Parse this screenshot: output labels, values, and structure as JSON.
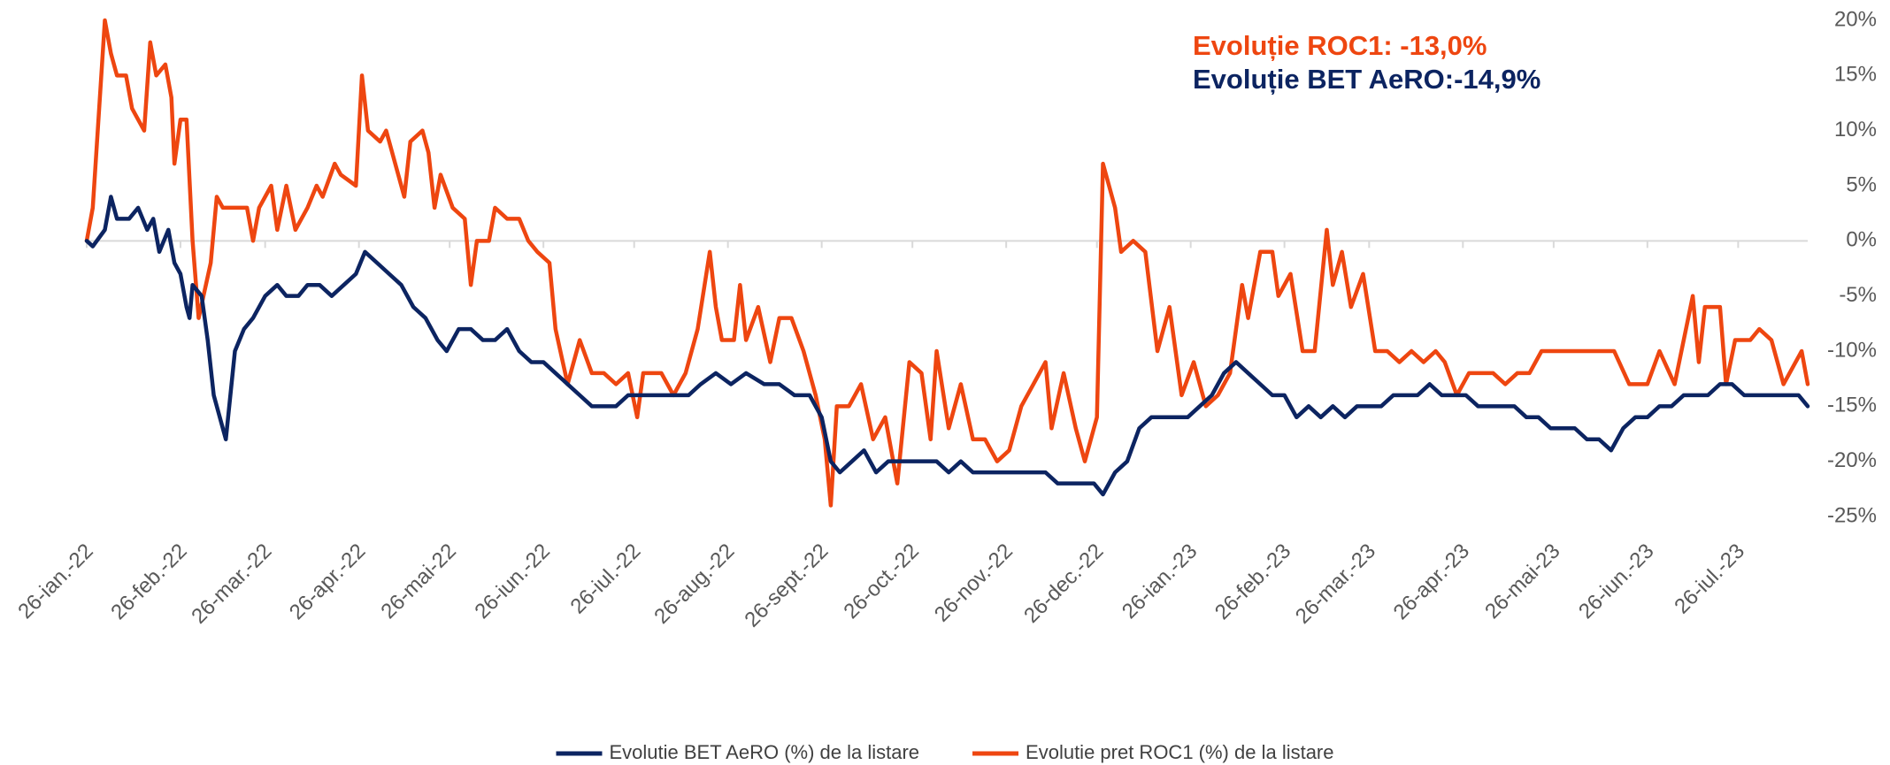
{
  "chart_data": {
    "type": "line",
    "annotations": [
      {
        "text": "Evoluție ROC1: -13,0%",
        "color": "#ee4610"
      },
      {
        "text": "Evoluție BET AeRO:-14,9%",
        "color": "#0c2461"
      }
    ],
    "xlim": [
      "2022-01-26",
      "2023-08-18"
    ],
    "xticks": [
      {
        "value": "2022-01-26",
        "label": "26-ian.-22"
      },
      {
        "value": "2022-02-26",
        "label": "26-feb.-22"
      },
      {
        "value": "2022-03-26",
        "label": "26-mar.-22"
      },
      {
        "value": "2022-04-26",
        "label": "26-apr.-22"
      },
      {
        "value": "2022-05-26",
        "label": "26-mai-22"
      },
      {
        "value": "2022-06-26",
        "label": "26-iun.-22"
      },
      {
        "value": "2022-07-26",
        "label": "26-iul.-22"
      },
      {
        "value": "2022-08-26",
        "label": "26-aug.-22"
      },
      {
        "value": "2022-09-26",
        "label": "26-sept.-22"
      },
      {
        "value": "2022-10-26",
        "label": "26-oct.-22"
      },
      {
        "value": "2022-11-26",
        "label": "26-nov.-22"
      },
      {
        "value": "2022-12-26",
        "label": "26-dec.-22"
      },
      {
        "value": "2023-01-26",
        "label": "26-ian.-23"
      },
      {
        "value": "2023-02-26",
        "label": "26-feb.-23"
      },
      {
        "value": "2023-03-26",
        "label": "26-mar.-23"
      },
      {
        "value": "2023-04-26",
        "label": "26-apr.-23"
      },
      {
        "value": "2023-05-26",
        "label": "26-mai-23"
      },
      {
        "value": "2023-06-26",
        "label": "26-iun.-23"
      },
      {
        "value": "2023-07-26",
        "label": "26-iul.-23"
      }
    ],
    "ylim": [
      -25,
      20
    ],
    "yticks": [
      {
        "value": 20,
        "label": "20%"
      },
      {
        "value": 15,
        "label": "15%"
      },
      {
        "value": 10,
        "label": "10%"
      },
      {
        "value": 5,
        "label": "5%"
      },
      {
        "value": 0,
        "label": "0%"
      },
      {
        "value": -5,
        "label": "-5%"
      },
      {
        "value": -10,
        "label": "-10%"
      },
      {
        "value": -15,
        "label": "-15%"
      },
      {
        "value": -20,
        "label": "-20%"
      },
      {
        "value": -25,
        "label": "-25%"
      }
    ],
    "grid": false,
    "legend": "bottom",
    "series": [
      {
        "name": "Evolutie BET AeRO (%) de la listare",
        "color": "#0c2461",
        "x": [
          "2022-01-26",
          "2022-01-28",
          "2022-02-01",
          "2022-02-03",
          "2022-02-05",
          "2022-02-09",
          "2022-02-12",
          "2022-02-15",
          "2022-02-17",
          "2022-02-19",
          "2022-02-22",
          "2022-02-24",
          "2022-02-26",
          "2022-02-28",
          "2022-03-01",
          "2022-03-02",
          "2022-03-05",
          "2022-03-07",
          "2022-03-09",
          "2022-03-13",
          "2022-03-16",
          "2022-03-19",
          "2022-03-22",
          "2022-03-26",
          "2022-03-30",
          "2022-04-02",
          "2022-04-06",
          "2022-04-09",
          "2022-04-13",
          "2022-04-17",
          "2022-04-21",
          "2022-04-25",
          "2022-04-28",
          "2022-05-02",
          "2022-05-06",
          "2022-05-10",
          "2022-05-14",
          "2022-05-18",
          "2022-05-22",
          "2022-05-25",
          "2022-05-29",
          "2022-06-02",
          "2022-06-06",
          "2022-06-10",
          "2022-06-14",
          "2022-06-18",
          "2022-06-22",
          "2022-06-26",
          "2022-06-30",
          "2022-07-04",
          "2022-07-08",
          "2022-07-12",
          "2022-07-16",
          "2022-07-20",
          "2022-07-24",
          "2022-07-28",
          "2022-08-03",
          "2022-08-09",
          "2022-08-13",
          "2022-08-17",
          "2022-08-22",
          "2022-08-27",
          "2022-09-01",
          "2022-09-07",
          "2022-09-12",
          "2022-09-17",
          "2022-09-22",
          "2022-09-26",
          "2022-09-29",
          "2022-10-02",
          "2022-10-06",
          "2022-10-10",
          "2022-10-14",
          "2022-10-18",
          "2022-10-22",
          "2022-10-26",
          "2022-10-30",
          "2022-11-03",
          "2022-11-07",
          "2022-11-11",
          "2022-11-15",
          "2022-11-19",
          "2022-11-23",
          "2022-11-27",
          "2022-12-01",
          "2022-12-05",
          "2022-12-09",
          "2022-12-13",
          "2022-12-17",
          "2022-12-21",
          "2022-12-25",
          "2022-12-28",
          "2023-01-01",
          "2023-01-05",
          "2023-01-09",
          "2023-01-13",
          "2023-01-17",
          "2023-01-21",
          "2023-01-25",
          "2023-01-29",
          "2023-02-02",
          "2023-02-06",
          "2023-02-10",
          "2023-02-14",
          "2023-02-18",
          "2023-02-22",
          "2023-02-26",
          "2023-03-02",
          "2023-03-06",
          "2023-03-10",
          "2023-03-14",
          "2023-03-18",
          "2023-03-22",
          "2023-03-26",
          "2023-03-30",
          "2023-04-03",
          "2023-04-07",
          "2023-04-11",
          "2023-04-15",
          "2023-04-19",
          "2023-04-23",
          "2023-04-27",
          "2023-05-01",
          "2023-05-05",
          "2023-05-09",
          "2023-05-13",
          "2023-05-17",
          "2023-05-21",
          "2023-05-25",
          "2023-05-29",
          "2023-06-02",
          "2023-06-06",
          "2023-06-10",
          "2023-06-14",
          "2023-06-18",
          "2023-06-22",
          "2023-06-26",
          "2023-06-30",
          "2023-07-04",
          "2023-07-08",
          "2023-07-12",
          "2023-07-16",
          "2023-07-20",
          "2023-07-24",
          "2023-07-28",
          "2023-08-01",
          "2023-08-06",
          "2023-08-11",
          "2023-08-15",
          "2023-08-18"
        ],
        "values": [
          0,
          -0.5,
          1,
          4,
          2,
          2,
          3,
          1,
          2,
          -1,
          1,
          -2,
          -3,
          -6,
          -7,
          -4,
          -5,
          -9,
          -14,
          -18,
          -10,
          -8,
          -7,
          -5,
          -4,
          -5,
          -5,
          -4,
          -4,
          -5,
          -4,
          -3,
          -1,
          -2,
          -3,
          -4,
          -6,
          -7,
          -9,
          -10,
          -8,
          -8,
          -9,
          -9,
          -8,
          -10,
          -11,
          -11,
          -12,
          -13,
          -14,
          -15,
          -15,
          -15,
          -14,
          -14,
          -14,
          -14,
          -14,
          -13,
          -12,
          -13,
          -12,
          -13,
          -13,
          -14,
          -14,
          -16,
          -20,
          -21,
          -20,
          -19,
          -21,
          -20,
          -20,
          -20,
          -20,
          -20,
          -21,
          -20,
          -21,
          -21,
          -21,
          -21,
          -21,
          -21,
          -21,
          -22,
          -22,
          -22,
          -22,
          -23,
          -21,
          -20,
          -17,
          -16,
          -16,
          -16,
          -16,
          -15,
          -14,
          -12,
          -11,
          -12,
          -13,
          -14,
          -14,
          -16,
          -15,
          -16,
          -15,
          -16,
          -15,
          -15,
          -15,
          -14,
          -14,
          -14,
          -13,
          -14,
          -14,
          -14,
          -15,
          -15,
          -15,
          -15,
          -16,
          -16,
          -17,
          -17,
          -17,
          -18,
          -18,
          -19,
          -17,
          -16,
          -16,
          -15,
          -15,
          -14,
          -14,
          -14,
          -13,
          -13,
          -14,
          -14,
          -14,
          -14,
          -14,
          -15
        ]
      },
      {
        "name": "Evolutie pret ROC1 (%) de la listare",
        "color": "#ee4610",
        "x": [
          "2022-01-26",
          "2022-01-28",
          "2022-02-01",
          "2022-02-03",
          "2022-02-05",
          "2022-02-08",
          "2022-02-10",
          "2022-02-14",
          "2022-02-16",
          "2022-02-18",
          "2022-02-21",
          "2022-02-23",
          "2022-02-24",
          "2022-02-26",
          "2022-02-28",
          "2022-03-02",
          "2022-03-04",
          "2022-03-08",
          "2022-03-10",
          "2022-03-12",
          "2022-03-16",
          "2022-03-20",
          "2022-03-22",
          "2022-03-24",
          "2022-03-28",
          "2022-03-30",
          "2022-04-02",
          "2022-04-05",
          "2022-04-09",
          "2022-04-12",
          "2022-04-14",
          "2022-04-18",
          "2022-04-20",
          "2022-04-25",
          "2022-04-27",
          "2022-04-29",
          "2022-05-03",
          "2022-05-05",
          "2022-05-09",
          "2022-05-11",
          "2022-05-13",
          "2022-05-17",
          "2022-05-19",
          "2022-05-21",
          "2022-05-23",
          "2022-05-27",
          "2022-05-31",
          "2022-06-02",
          "2022-06-04",
          "2022-06-08",
          "2022-06-10",
          "2022-06-14",
          "2022-06-18",
          "2022-06-21",
          "2022-06-24",
          "2022-06-28",
          "2022-06-30",
          "2022-07-04",
          "2022-07-08",
          "2022-07-12",
          "2022-07-16",
          "2022-07-20",
          "2022-07-24",
          "2022-07-27",
          "2022-07-29",
          "2022-08-04",
          "2022-08-08",
          "2022-08-12",
          "2022-08-16",
          "2022-08-20",
          "2022-08-22",
          "2022-08-24",
          "2022-08-28",
          "2022-08-30",
          "2022-09-01",
          "2022-09-05",
          "2022-09-09",
          "2022-09-12",
          "2022-09-16",
          "2022-09-20",
          "2022-09-24",
          "2022-09-27",
          "2022-09-29",
          "2022-10-01",
          "2022-10-05",
          "2022-10-09",
          "2022-10-13",
          "2022-10-17",
          "2022-10-21",
          "2022-10-25",
          "2022-10-29",
          "2022-11-01",
          "2022-11-03",
          "2022-11-07",
          "2022-11-11",
          "2022-11-15",
          "2022-11-19",
          "2022-11-23",
          "2022-11-27",
          "2022-12-01",
          "2022-12-05",
          "2022-12-09",
          "2022-12-11",
          "2022-12-15",
          "2022-12-19",
          "2022-12-22",
          "2022-12-26",
          "2022-12-28",
          "2023-01-01",
          "2023-01-03",
          "2023-01-07",
          "2023-01-11",
          "2023-01-15",
          "2023-01-19",
          "2023-01-23",
          "2023-01-27",
          "2023-01-31",
          "2023-02-04",
          "2023-02-08",
          "2023-02-12",
          "2023-02-14",
          "2023-02-18",
          "2023-02-22",
          "2023-02-24",
          "2023-02-28",
          "2023-03-04",
          "2023-03-08",
          "2023-03-12",
          "2023-03-14",
          "2023-03-17",
          "2023-03-20",
          "2023-03-24",
          "2023-03-28",
          "2023-04-01",
          "2023-04-05",
          "2023-04-09",
          "2023-04-13",
          "2023-04-17",
          "2023-04-20",
          "2023-04-24",
          "2023-04-28",
          "2023-05-02",
          "2023-05-06",
          "2023-05-10",
          "2023-05-14",
          "2023-05-18",
          "2023-05-22",
          "2023-05-30",
          "2023-06-05",
          "2023-06-10",
          "2023-06-15",
          "2023-06-20",
          "2023-06-26",
          "2023-06-30",
          "2023-07-05",
          "2023-07-11",
          "2023-07-13",
          "2023-07-15",
          "2023-07-20",
          "2023-07-22",
          "2023-07-25",
          "2023-07-30",
          "2023-08-02",
          "2023-08-06",
          "2023-08-10",
          "2023-08-14",
          "2023-08-16",
          "2023-08-18"
        ],
        "values": [
          0,
          3,
          20,
          17,
          15,
          15,
          12,
          10,
          18,
          15,
          16,
          13,
          7,
          11,
          11,
          0,
          -7,
          -2,
          4,
          3,
          3,
          3,
          0,
          3,
          5,
          1,
          5,
          1,
          3,
          5,
          4,
          7,
          6,
          5,
          15,
          10,
          9,
          10,
          6,
          4,
          9,
          10,
          8,
          3,
          6,
          3,
          2,
          -4,
          0,
          0,
          3,
          2,
          2,
          0,
          -1,
          -2,
          -8,
          -13,
          -9,
          -12,
          -12,
          -13,
          -12,
          -16,
          -12,
          -12,
          -14,
          -12,
          -8,
          -1,
          -6,
          -9,
          -9,
          -4,
          -9,
          -6,
          -11,
          -7,
          -7,
          -10,
          -14,
          -18,
          -24,
          -15,
          -15,
          -13,
          -18,
          -16,
          -22,
          -11,
          -12,
          -18,
          -10,
          -17,
          -13,
          -18,
          -18,
          -20,
          -19,
          -15,
          -13,
          -11,
          -17,
          -12,
          -17,
          -20,
          -16,
          7,
          3,
          -1,
          0,
          -1,
          -10,
          -6,
          -14,
          -11,
          -15,
          -14,
          -12,
          -4,
          -7,
          -1,
          -1,
          -5,
          -3,
          -10,
          -10,
          1,
          -4,
          -1,
          -6,
          -3,
          -10,
          -10,
          -11,
          -10,
          -11,
          -10,
          -11,
          -14,
          -12,
          -12,
          -12,
          -13,
          -12,
          -12,
          -10,
          -10,
          -10,
          -10,
          -10,
          -13,
          -13,
          -10,
          -13,
          -5,
          -11,
          -6,
          -6,
          -13,
          -9,
          -9,
          -8,
          -9,
          -13,
          -11,
          -10,
          -13
        ]
      }
    ]
  }
}
